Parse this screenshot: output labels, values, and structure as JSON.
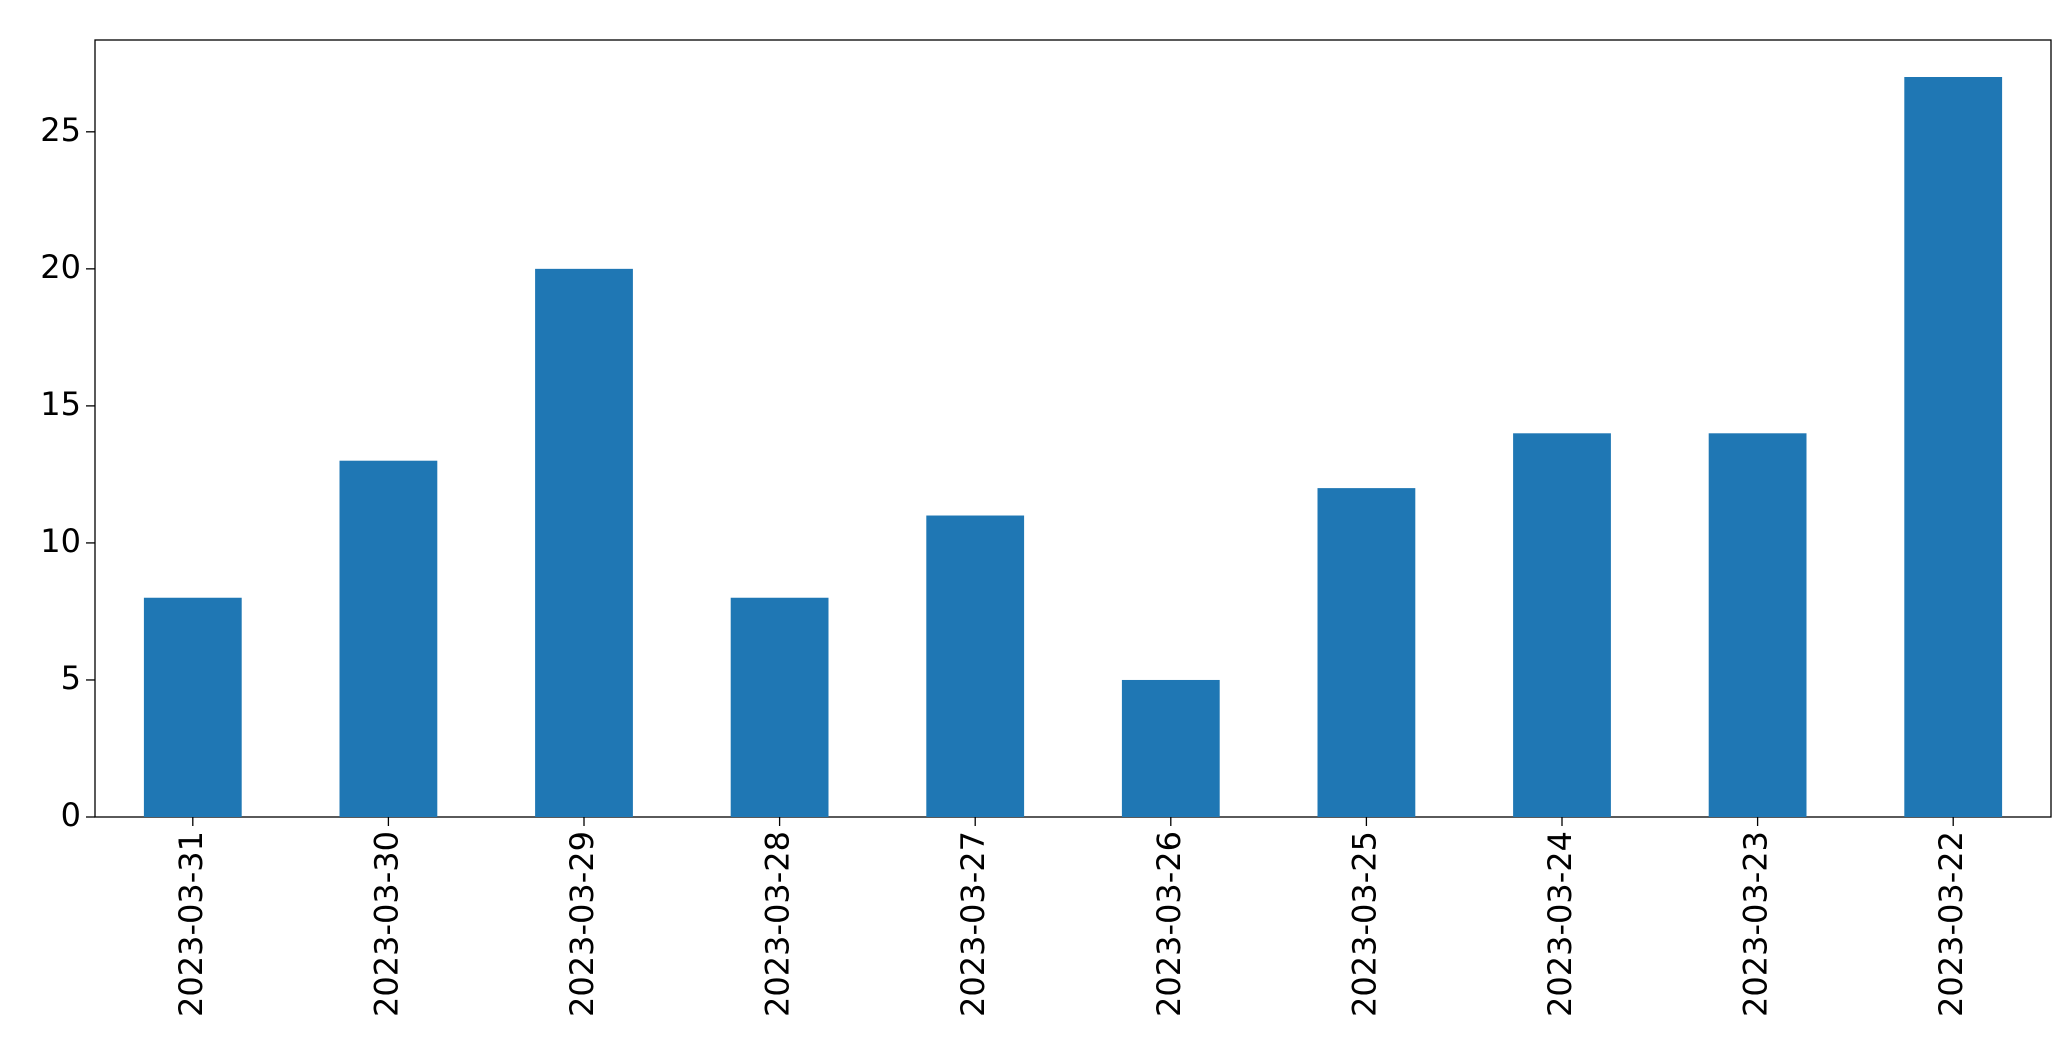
{
  "chart_data": {
    "type": "bar",
    "categories": [
      "2023-03-31",
      "2023-03-30",
      "2023-03-29",
      "2023-03-28",
      "2023-03-27",
      "2023-03-26",
      "2023-03-25",
      "2023-03-24",
      "2023-03-23",
      "2023-03-22"
    ],
    "values": [
      8,
      13,
      20,
      8,
      11,
      5,
      12,
      14,
      14,
      27
    ],
    "color": "#1f77b4",
    "ylim": [
      0,
      28.35
    ],
    "yticks": [
      0,
      5,
      10,
      15,
      20,
      25
    ],
    "grid": false
  }
}
